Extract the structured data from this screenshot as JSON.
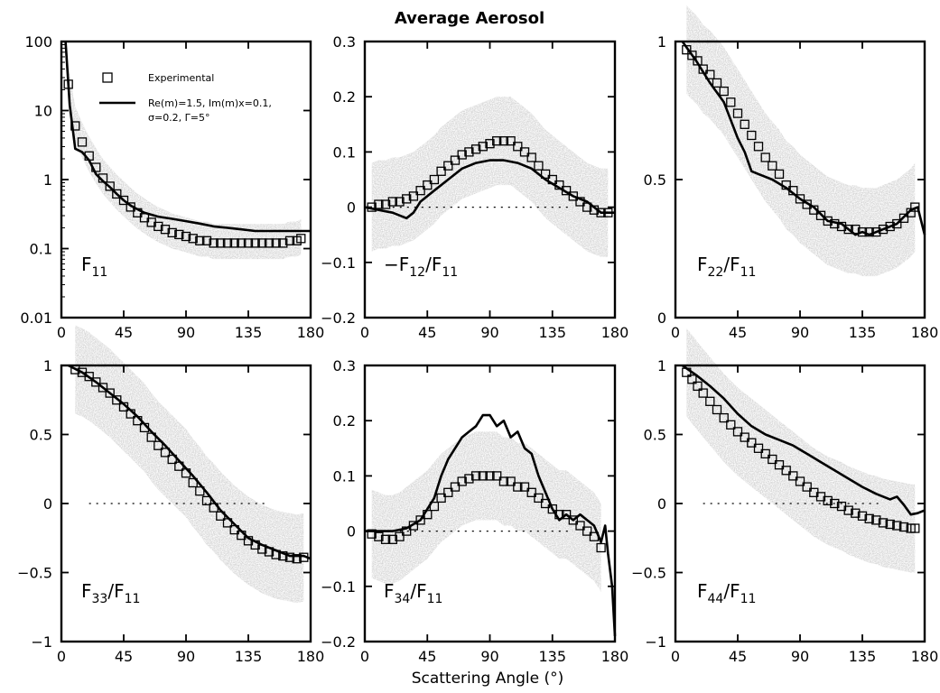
{
  "figure": {
    "title": "Average Aerosol",
    "xlabel": "Scattering Angle (°)",
    "legend": {
      "experimental": "Experimental",
      "model_line1": "Re(m)=1.5, Im(m)x=0.1,",
      "model_line2": "σ=0.2, Γ=5°"
    }
  },
  "chart_data": [
    {
      "type": "line",
      "panel_label": [
        "F",
        "11",
        ""
      ],
      "xlim": [
        0,
        180
      ],
      "xticks": [
        0,
        45,
        90,
        135,
        180
      ],
      "ylim": [
        0.01,
        100
      ],
      "yscale": "log",
      "yticks": [
        0.01,
        0.1,
        1,
        10,
        100
      ],
      "ytick_labels": [
        "0.01",
        "0.1",
        "1",
        "10",
        "100"
      ],
      "series": [
        {
          "name": "Experimental",
          "style": "markers",
          "x": [
            5,
            10,
            15,
            20,
            25,
            30,
            35,
            40,
            45,
            50,
            55,
            60,
            65,
            70,
            75,
            80,
            85,
            90,
            95,
            100,
            105,
            110,
            115,
            120,
            125,
            130,
            135,
            140,
            145,
            150,
            155,
            160,
            165,
            170,
            173
          ],
          "y": [
            24,
            6,
            3.5,
            2.2,
            1.5,
            1.05,
            0.8,
            0.62,
            0.5,
            0.4,
            0.33,
            0.28,
            0.24,
            0.21,
            0.19,
            0.17,
            0.16,
            0.15,
            0.14,
            0.13,
            0.13,
            0.12,
            0.12,
            0.12,
            0.12,
            0.12,
            0.12,
            0.12,
            0.12,
            0.12,
            0.12,
            0.12,
            0.13,
            0.13,
            0.14
          ]
        },
        {
          "name": "Re(m)=1.5, Im(m)x=0.1, σ=0.2, Γ=5°",
          "style": "line",
          "x": [
            3,
            6,
            10,
            15,
            20,
            25,
            30,
            35,
            40,
            45,
            50,
            55,
            60,
            70,
            80,
            90,
            100,
            110,
            120,
            130,
            140,
            150,
            160,
            170,
            180
          ],
          "y": [
            100,
            12,
            2.8,
            2.5,
            1.9,
            1.2,
            0.95,
            0.78,
            0.62,
            0.5,
            0.42,
            0.37,
            0.33,
            0.29,
            0.27,
            0.25,
            0.23,
            0.21,
            0.2,
            0.19,
            0.18,
            0.18,
            0.18,
            0.18,
            0.18
          ]
        }
      ]
    },
    {
      "type": "line",
      "panel_label": [
        "−F",
        "12",
        "/F",
        "11"
      ],
      "xlim": [
        0,
        180
      ],
      "xticks": [
        0,
        45,
        90,
        135,
        180
      ],
      "ylim": [
        -0.2,
        0.3
      ],
      "yticks": [
        -0.2,
        -0.1,
        0,
        0.1,
        0.2,
        0.3
      ],
      "ytick_labels": [
        "−0.2",
        "−0.1",
        "0",
        "0.1",
        "0.2",
        "0.3"
      ],
      "series": [
        {
          "name": "Experimental",
          "style": "markers",
          "x": [
            5,
            10,
            15,
            20,
            25,
            30,
            35,
            40,
            45,
            50,
            55,
            60,
            65,
            70,
            75,
            80,
            85,
            90,
            95,
            100,
            105,
            110,
            115,
            120,
            125,
            130,
            135,
            140,
            145,
            150,
            155,
            160,
            165,
            170,
            175
          ],
          "y": [
            0,
            0.005,
            0.005,
            0.01,
            0.01,
            0.015,
            0.02,
            0.03,
            0.04,
            0.05,
            0.065,
            0.075,
            0.085,
            0.095,
            0.1,
            0.105,
            0.11,
            0.115,
            0.12,
            0.12,
            0.12,
            0.11,
            0.1,
            0.09,
            0.075,
            0.06,
            0.05,
            0.04,
            0.03,
            0.02,
            0.01,
            0,
            -0.005,
            -0.01,
            -0.01
          ]
        },
        {
          "name": "Model",
          "style": "line",
          "x": [
            0,
            10,
            20,
            30,
            35,
            40,
            50,
            60,
            70,
            80,
            90,
            100,
            110,
            120,
            130,
            140,
            150,
            160,
            170,
            180
          ],
          "y": [
            0,
            -0.005,
            -0.01,
            -0.02,
            -0.01,
            0.01,
            0.03,
            0.05,
            0.07,
            0.08,
            0.085,
            0.085,
            0.08,
            0.07,
            0.05,
            0.035,
            0.02,
            0.01,
            -0.01,
            -0.01
          ]
        }
      ]
    },
    {
      "type": "line",
      "panel_label": [
        "F",
        "22",
        "/F",
        "11"
      ],
      "xlim": [
        0,
        180
      ],
      "xticks": [
        0,
        45,
        90,
        135,
        180
      ],
      "ylim": [
        0,
        1
      ],
      "yticks": [
        0,
        0.5,
        1
      ],
      "ytick_labels": [
        "0",
        "0.5",
        "1"
      ],
      "series": [
        {
          "name": "Experimental",
          "style": "markers",
          "x": [
            8,
            12,
            16,
            20,
            25,
            30,
            35,
            40,
            45,
            50,
            55,
            60,
            65,
            70,
            75,
            80,
            85,
            90,
            95,
            100,
            105,
            110,
            115,
            120,
            125,
            130,
            135,
            140,
            145,
            150,
            155,
            160,
            165,
            170,
            173
          ],
          "y": [
            0.97,
            0.95,
            0.93,
            0.9,
            0.88,
            0.85,
            0.82,
            0.78,
            0.74,
            0.7,
            0.66,
            0.62,
            0.58,
            0.55,
            0.52,
            0.48,
            0.46,
            0.43,
            0.41,
            0.39,
            0.37,
            0.35,
            0.34,
            0.33,
            0.32,
            0.32,
            0.31,
            0.31,
            0.31,
            0.32,
            0.33,
            0.34,
            0.36,
            0.38,
            0.4
          ]
        },
        {
          "name": "Model",
          "style": "line",
          "x": [
            5,
            15,
            25,
            35,
            45,
            50,
            55,
            60,
            70,
            80,
            90,
            100,
            110,
            120,
            130,
            135,
            140,
            150,
            160,
            170,
            175,
            180
          ],
          "y": [
            1,
            0.93,
            0.85,
            0.78,
            0.65,
            0.6,
            0.53,
            0.52,
            0.5,
            0.47,
            0.43,
            0.4,
            0.35,
            0.34,
            0.3,
            0.31,
            0.3,
            0.32,
            0.34,
            0.39,
            0.4,
            0.3
          ]
        }
      ]
    },
    {
      "type": "line",
      "panel_label": [
        "F",
        "33",
        "/F",
        "11"
      ],
      "xlim": [
        0,
        180
      ],
      "xticks": [
        0,
        45,
        90,
        135,
        180
      ],
      "ylim": [
        -1,
        1
      ],
      "yticks": [
        -1,
        -0.5,
        0,
        0.5,
        1
      ],
      "ytick_labels": [
        "−1",
        "−0.5",
        "0",
        "0.5",
        "1"
      ],
      "series": [
        {
          "name": "Experimental",
          "style": "markers",
          "x": [
            10,
            15,
            20,
            25,
            30,
            35,
            40,
            45,
            50,
            55,
            60,
            65,
            70,
            75,
            80,
            85,
            90,
            95,
            100,
            105,
            110,
            115,
            120,
            125,
            130,
            135,
            140,
            145,
            150,
            155,
            160,
            165,
            170,
            175
          ],
          "y": [
            0.97,
            0.95,
            0.92,
            0.88,
            0.84,
            0.8,
            0.75,
            0.7,
            0.65,
            0.6,
            0.55,
            0.48,
            0.42,
            0.37,
            0.32,
            0.27,
            0.22,
            0.15,
            0.09,
            0.02,
            -0.03,
            -0.09,
            -0.14,
            -0.19,
            -0.23,
            -0.27,
            -0.3,
            -0.33,
            -0.35,
            -0.37,
            -0.38,
            -0.39,
            -0.4,
            -0.39
          ]
        },
        {
          "name": "Model",
          "style": "line",
          "x": [
            5,
            15,
            25,
            35,
            45,
            55,
            65,
            75,
            85,
            95,
            105,
            115,
            125,
            135,
            145,
            155,
            165,
            175,
            180
          ],
          "y": [
            1,
            0.95,
            0.88,
            0.8,
            0.72,
            0.63,
            0.52,
            0.42,
            0.31,
            0.2,
            0.08,
            -0.05,
            -0.15,
            -0.25,
            -0.3,
            -0.34,
            -0.38,
            -0.38,
            -0.4
          ]
        }
      ]
    },
    {
      "type": "line",
      "panel_label": [
        "F",
        "34",
        "/F",
        "11"
      ],
      "xlim": [
        0,
        180
      ],
      "xticks": [
        0,
        45,
        90,
        135,
        180
      ],
      "ylim": [
        -0.2,
        0.3
      ],
      "yticks": [
        -0.2,
        -0.1,
        0,
        0.1,
        0.2,
        0.3
      ],
      "ytick_labels": [
        "−0.2",
        "−0.1",
        "0",
        "0.1",
        "0.2",
        "0.3"
      ],
      "series": [
        {
          "name": "Experimental",
          "style": "markers",
          "x": [
            5,
            10,
            15,
            20,
            25,
            30,
            35,
            40,
            45,
            50,
            55,
            60,
            65,
            70,
            75,
            80,
            85,
            90,
            95,
            100,
            105,
            110,
            115,
            120,
            125,
            130,
            135,
            140,
            145,
            150,
            155,
            160,
            165,
            170
          ],
          "y": [
            -0.005,
            -0.01,
            -0.015,
            -0.015,
            -0.01,
            0,
            0.01,
            0.02,
            0.03,
            0.045,
            0.06,
            0.07,
            0.08,
            0.09,
            0.095,
            0.1,
            0.1,
            0.1,
            0.1,
            0.09,
            0.09,
            0.08,
            0.08,
            0.07,
            0.06,
            0.05,
            0.04,
            0.03,
            0.03,
            0.02,
            0.01,
            0,
            -0.01,
            -0.03
          ]
        },
        {
          "name": "Model",
          "style": "line",
          "x": [
            0,
            10,
            20,
            30,
            40,
            45,
            50,
            55,
            60,
            65,
            70,
            75,
            80,
            85,
            90,
            95,
            100,
            105,
            110,
            115,
            120,
            125,
            130,
            135,
            140,
            145,
            150,
            155,
            160,
            165,
            170,
            173,
            175,
            178,
            180
          ],
          "y": [
            0,
            0,
            0,
            0.005,
            0.02,
            0.04,
            0.06,
            0.1,
            0.13,
            0.15,
            0.17,
            0.18,
            0.19,
            0.21,
            0.21,
            0.19,
            0.2,
            0.17,
            0.18,
            0.15,
            0.14,
            0.1,
            0.07,
            0.04,
            0.02,
            0.03,
            0.02,
            0.03,
            0.02,
            0.01,
            -0.02,
            0.01,
            -0.04,
            -0.1,
            -0.19
          ]
        }
      ]
    },
    {
      "type": "line",
      "panel_label": [
        "F",
        "44",
        "/F",
        "11"
      ],
      "xlim": [
        0,
        180
      ],
      "xticks": [
        0,
        45,
        90,
        135,
        180
      ],
      "ylim": [
        -1,
        1
      ],
      "yticks": [
        -1,
        -0.5,
        0,
        0.5,
        1
      ],
      "ytick_labels": [
        "−1",
        "−0.5",
        "0",
        "0.5",
        "1"
      ],
      "series": [
        {
          "name": "Experimental",
          "style": "markers",
          "x": [
            8,
            12,
            16,
            20,
            25,
            30,
            35,
            40,
            45,
            50,
            55,
            60,
            65,
            70,
            75,
            80,
            85,
            90,
            95,
            100,
            105,
            110,
            115,
            120,
            125,
            130,
            135,
            140,
            145,
            150,
            155,
            160,
            165,
            170,
            173
          ],
          "y": [
            0.95,
            0.9,
            0.85,
            0.8,
            0.74,
            0.68,
            0.62,
            0.57,
            0.52,
            0.48,
            0.44,
            0.4,
            0.36,
            0.32,
            0.28,
            0.24,
            0.2,
            0.16,
            0.12,
            0.08,
            0.05,
            0.02,
            0,
            -0.02,
            -0.05,
            -0.07,
            -0.09,
            -0.11,
            -0.12,
            -0.14,
            -0.15,
            -0.16,
            -0.17,
            -0.18,
            -0.18
          ]
        },
        {
          "name": "Model",
          "style": "line",
          "x": [
            5,
            15,
            25,
            35,
            45,
            55,
            65,
            75,
            85,
            95,
            105,
            115,
            125,
            135,
            145,
            155,
            160,
            165,
            170,
            175,
            180
          ],
          "y": [
            1,
            0.93,
            0.85,
            0.76,
            0.65,
            0.56,
            0.5,
            0.46,
            0.42,
            0.36,
            0.3,
            0.24,
            0.18,
            0.12,
            0.07,
            0.03,
            0.05,
            -0.01,
            -0.08,
            -0.07,
            -0.05
          ]
        }
      ]
    }
  ]
}
